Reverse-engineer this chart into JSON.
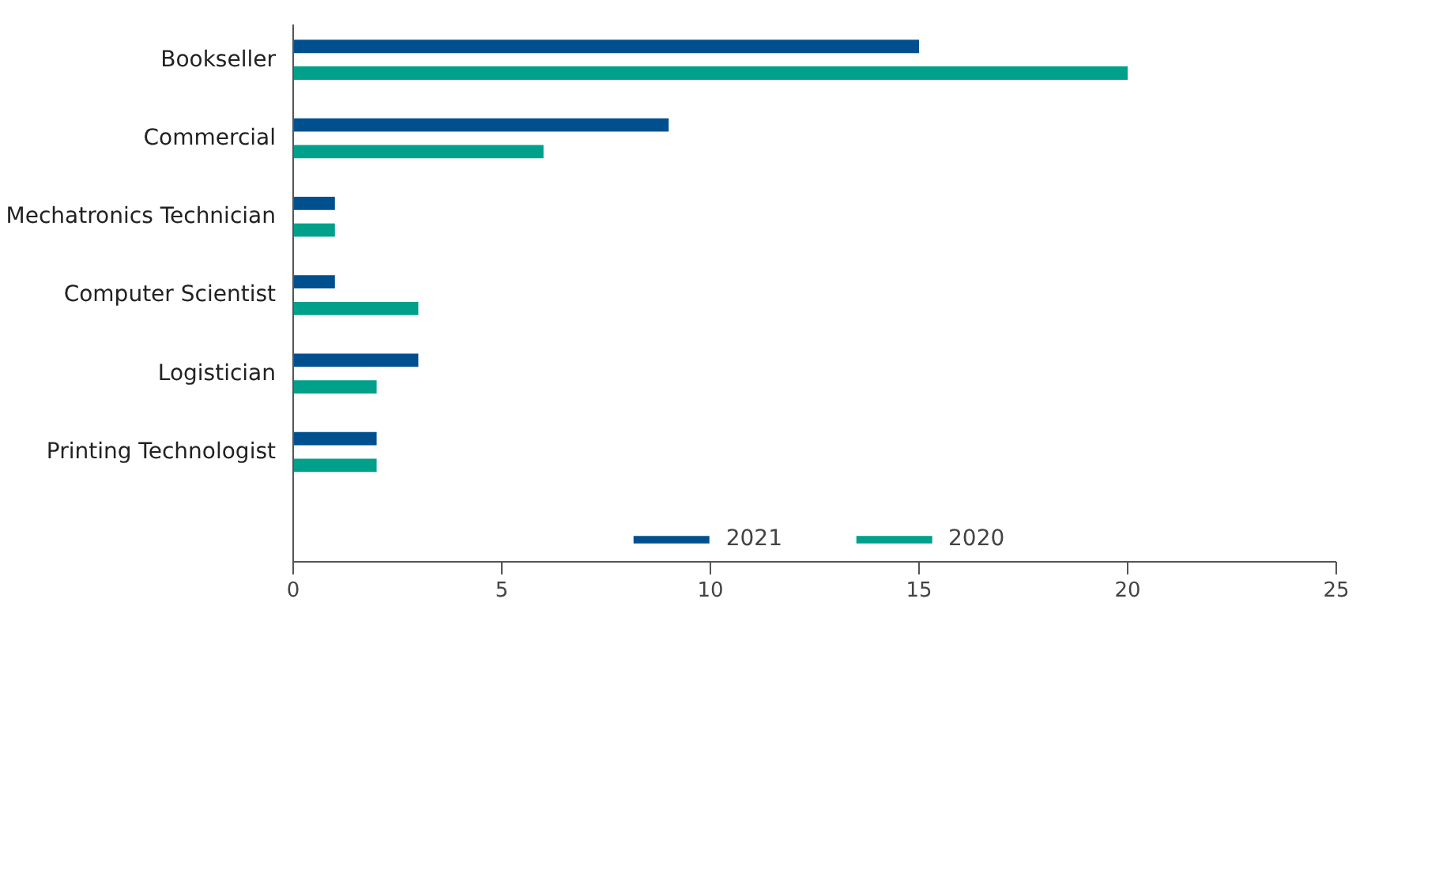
{
  "chart_data": {
    "type": "bar",
    "orientation": "horizontal",
    "categories": [
      "Bookseller",
      "Commercial",
      "Mechatronics Technician",
      "Computer Scientist",
      "Logistician",
      "Printing Technologist"
    ],
    "series": [
      {
        "name": "2021",
        "color": "#00508f",
        "values": [
          15,
          9,
          1,
          1,
          3,
          2
        ]
      },
      {
        "name": "2020",
        "color": "#00a08a",
        "values": [
          20,
          6,
          1,
          3,
          2,
          2
        ]
      }
    ],
    "xlim": [
      0,
      25
    ],
    "xticks": [
      0,
      5,
      10,
      15,
      20,
      25
    ],
    "grid": false,
    "legend": "bottom"
  }
}
